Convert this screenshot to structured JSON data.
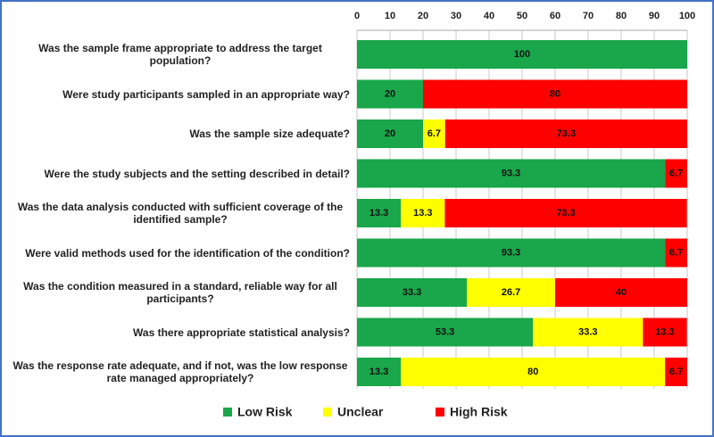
{
  "chart_data": {
    "type": "stacked-barh",
    "categories": [
      "Was the sample frame appropriate to address the target population?",
      "Were study participants sampled in an appropriate way?",
      "Was the sample size adequate?",
      "Were the study subjects and the setting described in detail?",
      "Was the data analysis conducted with sufficient coverage of the identified sample?",
      "Were valid methods used for the identification of the condition?",
      "Was the condition measured in a standard, reliable way for all participants?",
      "Was there appropriate statistical analysis?",
      "Was the response rate adequate, and if not, was the low response rate managed appropriately?"
    ],
    "series": [
      {
        "name": "Low Risk",
        "color": "#1aa64a",
        "values": [
          100,
          20,
          20,
          93.3,
          13.3,
          93.3,
          33.3,
          53.3,
          13.3
        ]
      },
      {
        "name": "Unclear",
        "color": "#ffff00",
        "values": [
          null,
          null,
          6.7,
          null,
          13.3,
          null,
          26.7,
          33.3,
          80
        ]
      },
      {
        "name": "High Risk",
        "color": "#ff0000",
        "values": [
          null,
          80,
          73.3,
          6.7,
          73.3,
          6.7,
          40,
          13.3,
          6.7
        ]
      }
    ],
    "xlim": [
      0,
      100
    ],
    "xticks": [
      0,
      10,
      20,
      30,
      40,
      50,
      60,
      70,
      80,
      90,
      100
    ],
    "grid": true
  }
}
